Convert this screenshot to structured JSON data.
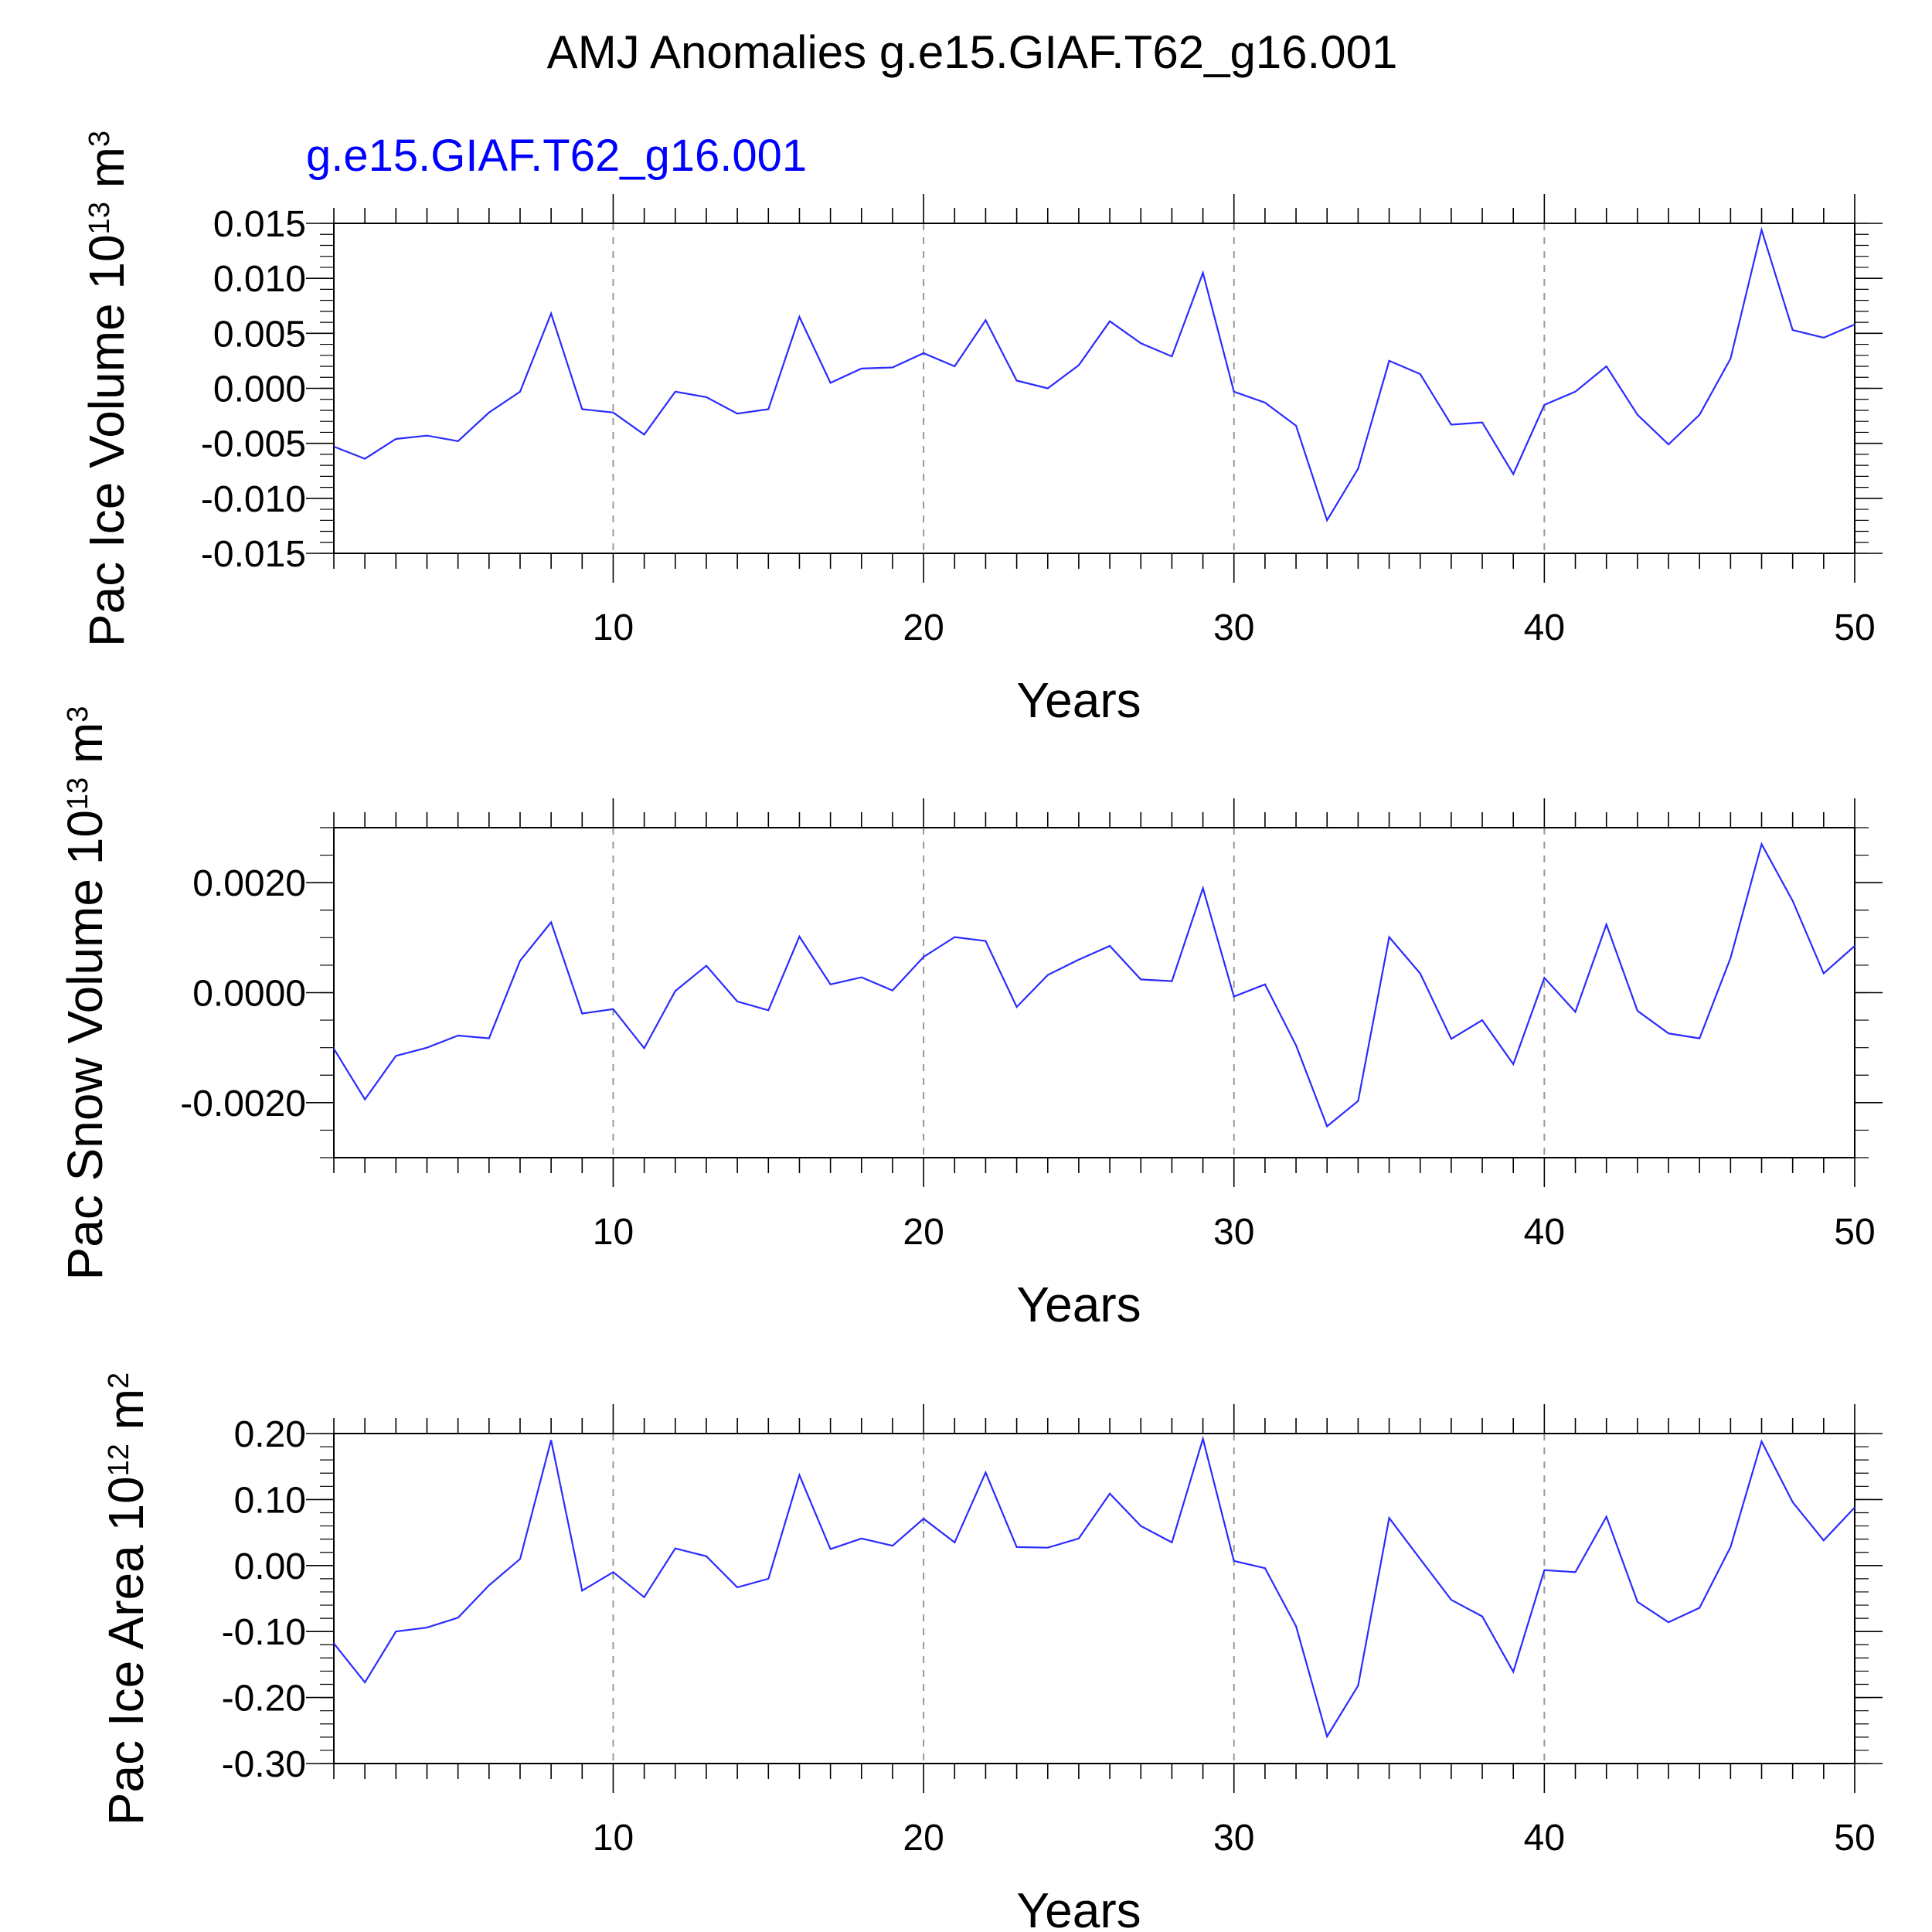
{
  "figure_title": "AMJ Anomalies g.e15.GIAF.T62_g16.001",
  "colors": {
    "line": "#2b2bff",
    "subtitle": "#0000ff",
    "axis": "#000000",
    "grid": "#999999"
  },
  "chart_data": [
    {
      "type": "line",
      "subtitle": "g.e15.GIAF.T62_g16.001",
      "ylabel": "Pac Ice Volume 10",
      "ylabel_exp": "13",
      "ylabel_unit": "m",
      "ylabel_unit_exp": "3",
      "xlabel": "Years",
      "xlim": [
        1,
        50
      ],
      "ylim": [
        -0.015,
        0.015
      ],
      "xticks": [
        10,
        20,
        30,
        40,
        50
      ],
      "xtick_labels": [
        "10",
        "20",
        "30",
        "40",
        "50"
      ],
      "yticks": [
        -0.015,
        -0.01,
        -0.005,
        0.0,
        0.005,
        0.01,
        0.015
      ],
      "ytick_labels": [
        "-0.015",
        "-0.010",
        "-0.005",
        "0.000",
        "0.005",
        "0.010",
        "0.015"
      ],
      "yminor_step": 0.001,
      "grid_x": [
        10,
        20,
        30,
        40
      ],
      "series": [
        {
          "name": "g.e15.GIAF.T62_g16.001",
          "x": [
            1,
            2,
            3,
            4,
            5,
            6,
            7,
            8,
            9,
            10,
            11,
            12,
            13,
            14,
            15,
            16,
            17,
            18,
            19,
            20,
            21,
            22,
            23,
            24,
            25,
            26,
            27,
            28,
            29,
            30,
            31,
            32,
            33,
            34,
            35,
            36,
            37,
            38,
            39,
            40,
            41,
            42,
            43,
            44,
            45,
            46,
            47,
            48,
            49,
            50
          ],
          "values": [
            -0.0053,
            -0.0064,
            -0.0046,
            -0.0043,
            -0.0048,
            -0.0022,
            -0.0003,
            0.0068,
            -0.0019,
            -0.0022,
            -0.0042,
            -0.0003,
            -0.0008,
            -0.0023,
            -0.0019,
            0.0065,
            0.0005,
            0.0018,
            0.0019,
            0.0032,
            0.002,
            0.0062,
            0.0007,
            0.0,
            0.0021,
            0.0061,
            0.0041,
            0.0029,
            0.0105,
            -0.0003,
            -0.0013,
            -0.0034,
            -0.012,
            -0.0073,
            0.0025,
            0.0013,
            -0.0033,
            -0.0031,
            -0.0078,
            -0.0015,
            -0.0003,
            0.002,
            -0.0024,
            -0.0051,
            -0.0024,
            0.0027,
            0.0144,
            0.0053,
            0.0046,
            0.0058
          ]
        }
      ]
    },
    {
      "type": "line",
      "subtitle": "",
      "ylabel": "Pac Snow Volume 10",
      "ylabel_exp": "13",
      "ylabel_unit": "m",
      "ylabel_unit_exp": "3",
      "xlabel": "Years",
      "xlim": [
        1,
        50
      ],
      "ylim": [
        -0.003,
        0.003
      ],
      "xticks": [
        10,
        20,
        30,
        40,
        50
      ],
      "xtick_labels": [
        "10",
        "20",
        "30",
        "40",
        "50"
      ],
      "yticks": [
        -0.002,
        0.0,
        0.002
      ],
      "ytick_labels": [
        "-0.0020",
        "0.0000",
        "0.0020"
      ],
      "yminor_step": 0.0005,
      "grid_x": [
        10,
        20,
        30,
        40
      ],
      "series": [
        {
          "name": "g.e15.GIAF.T62_g16.001",
          "x": [
            1,
            2,
            3,
            4,
            5,
            6,
            7,
            8,
            9,
            10,
            11,
            12,
            13,
            14,
            15,
            16,
            17,
            18,
            19,
            20,
            21,
            22,
            23,
            24,
            25,
            26,
            27,
            28,
            29,
            30,
            31,
            32,
            33,
            34,
            35,
            36,
            37,
            38,
            39,
            40,
            41,
            42,
            43,
            44,
            45,
            46,
            47,
            48,
            49,
            50
          ],
          "values": [
            -0.00102,
            -0.00194,
            -0.00115,
            -0.001,
            -0.00078,
            -0.00083,
            0.00058,
            0.00128,
            -0.00038,
            -0.0003,
            -0.00101,
            3e-05,
            0.00049,
            -0.00016,
            -0.00032,
            0.00102,
            0.00015,
            0.00028,
            4e-05,
            0.00065,
            0.00101,
            0.00094,
            -0.00026,
            0.00032,
            0.0006,
            0.00085,
            0.00024,
            0.00021,
            0.0019,
            -7e-05,
            0.00015,
            -0.00096,
            -0.00243,
            -0.00197,
            0.00101,
            0.00035,
            -0.00084,
            -0.0005,
            -0.0013,
            0.00027,
            -0.00035,
            0.00124,
            -0.00033,
            -0.00074,
            -0.00083,
            0.00063,
            0.0027,
            0.00167,
            0.00035,
            0.00085
          ]
        }
      ]
    },
    {
      "type": "line",
      "subtitle": "",
      "ylabel": "Pac Ice Area 10",
      "ylabel_exp": "12",
      "ylabel_unit": "m",
      "ylabel_unit_exp": "2",
      "xlabel": "Years",
      "xlim": [
        1,
        50
      ],
      "ylim": [
        -0.3,
        0.2
      ],
      "xticks": [
        10,
        20,
        30,
        40,
        50
      ],
      "xtick_labels": [
        "10",
        "20",
        "30",
        "40",
        "50"
      ],
      "yticks": [
        -0.3,
        -0.2,
        -0.1,
        0.0,
        0.1,
        0.2
      ],
      "ytick_labels": [
        "-0.30",
        "-0.20",
        "-0.10",
        "0.00",
        "0.10",
        "0.20"
      ],
      "yminor_step": 0.02,
      "grid_x": [
        10,
        20,
        30,
        40
      ],
      "series": [
        {
          "name": "g.e15.GIAF.T62_g16.001",
          "x": [
            1,
            2,
            3,
            4,
            5,
            6,
            7,
            8,
            9,
            10,
            11,
            12,
            13,
            14,
            15,
            16,
            17,
            18,
            19,
            20,
            21,
            22,
            23,
            24,
            25,
            26,
            27,
            28,
            29,
            30,
            31,
            32,
            33,
            34,
            35,
            36,
            37,
            38,
            39,
            40,
            41,
            42,
            43,
            44,
            45,
            46,
            47,
            48,
            49,
            50
          ],
          "values": [
            -0.118,
            -0.177,
            -0.1,
            -0.094,
            -0.079,
            -0.03,
            0.01,
            0.19,
            -0.038,
            -0.01,
            -0.048,
            0.026,
            0.014,
            -0.033,
            -0.02,
            0.137,
            0.025,
            0.041,
            0.03,
            0.071,
            0.035,
            0.141,
            0.028,
            0.027,
            0.041,
            0.109,
            0.06,
            0.035,
            0.192,
            0.007,
            -0.004,
            -0.092,
            -0.259,
            -0.182,
            0.072,
            0.01,
            -0.052,
            -0.077,
            -0.161,
            -0.007,
            -0.01,
            0.074,
            -0.055,
            -0.086,
            -0.064,
            0.028,
            0.188,
            0.096,
            0.038,
            0.088
          ]
        }
      ]
    }
  ]
}
